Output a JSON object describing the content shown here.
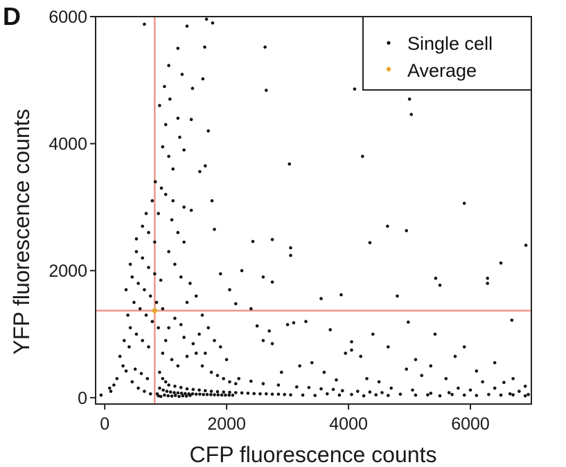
{
  "chart_data": {
    "type": "scatter",
    "panel_label": "D",
    "xlabel": "CFP fluorescence counts",
    "ylabel": "YFP fluorescence counts",
    "xlim": [
      -150,
      7000
    ],
    "ylim": [
      -100,
      6000
    ],
    "x_ticks": [
      0,
      2000,
      4000,
      6000
    ],
    "y_ticks": [
      0,
      2000,
      4000,
      6000
    ],
    "x_tick_labels": [
      "0",
      "2000",
      "4000",
      "6000"
    ],
    "y_tick_labels": [
      "0",
      "2000",
      "4000",
      "6000"
    ],
    "grid": false,
    "legend_position": "top-right",
    "reference_lines": {
      "vertical_x": 820,
      "horizontal_y": 1370,
      "color": "#f0958a"
    },
    "series": [
      {
        "name": "Single cell",
        "color": "#111111",
        "marker": "dot",
        "points": [
          [
            650,
            5880
          ],
          [
            1350,
            5850
          ],
          [
            1670,
            5960
          ],
          [
            1770,
            5900
          ],
          [
            1200,
            5500
          ],
          [
            1640,
            5520
          ],
          [
            2630,
            5520
          ],
          [
            1050,
            5230
          ],
          [
            1270,
            5090
          ],
          [
            980,
            4900
          ],
          [
            1440,
            4870
          ],
          [
            1610,
            5020
          ],
          [
            2650,
            4840
          ],
          [
            4100,
            4860
          ],
          [
            5000,
            4700
          ],
          [
            5030,
            4460
          ],
          [
            1070,
            4700
          ],
          [
            900,
            4600
          ],
          [
            1200,
            4400
          ],
          [
            1420,
            4380
          ],
          [
            1700,
            4200
          ],
          [
            1000,
            4300
          ],
          [
            1230,
            4100
          ],
          [
            950,
            3950
          ],
          [
            1300,
            3900
          ],
          [
            1050,
            3800
          ],
          [
            1120,
            3600
          ],
          [
            1650,
            3650
          ],
          [
            1560,
            3560
          ],
          [
            3030,
            3680
          ],
          [
            4230,
            3800
          ],
          [
            1000,
            3200
          ],
          [
            1120,
            3100
          ],
          [
            1300,
            3000
          ],
          [
            1420,
            2950
          ],
          [
            1760,
            3100
          ],
          [
            5900,
            3060
          ],
          [
            1800,
            2650
          ],
          [
            2430,
            2460
          ],
          [
            2750,
            2490
          ],
          [
            3050,
            2360
          ],
          [
            3050,
            2240
          ],
          [
            4350,
            2440
          ],
          [
            4640,
            2700
          ],
          [
            4950,
            2630
          ],
          [
            6500,
            2120
          ],
          [
            6910,
            2400
          ],
          [
            2250,
            2000
          ],
          [
            2600,
            1900
          ],
          [
            2750,
            1820
          ],
          [
            3550,
            1560
          ],
          [
            3880,
            1620
          ],
          [
            4800,
            1600
          ],
          [
            5430,
            1880
          ],
          [
            5500,
            1770
          ],
          [
            6280,
            1880
          ],
          [
            6280,
            1800
          ],
          [
            1900,
            1950
          ],
          [
            2050,
            1700
          ],
          [
            2150,
            1480
          ],
          [
            2400,
            1400
          ],
          [
            3300,
            1200
          ],
          [
            2500,
            1130
          ],
          [
            2700,
            1050
          ],
          [
            3000,
            1150
          ],
          [
            3100,
            1180
          ],
          [
            3700,
            1070
          ],
          [
            4050,
            880
          ],
          [
            4400,
            1000
          ],
          [
            4980,
            1190
          ],
          [
            5420,
            1000
          ],
          [
            6680,
            1220
          ],
          [
            2600,
            900
          ],
          [
            2750,
            850
          ],
          [
            3950,
            700
          ],
          [
            4050,
            750
          ],
          [
            4200,
            650
          ],
          [
            4650,
            800
          ],
          [
            5100,
            600
          ],
          [
            5350,
            500
          ],
          [
            5750,
            650
          ],
          [
            5900,
            800
          ],
          [
            6400,
            550
          ],
          [
            6700,
            300
          ],
          [
            6900,
            180
          ],
          [
            3200,
            500
          ],
          [
            3400,
            550
          ],
          [
            3600,
            400
          ],
          [
            2900,
            400
          ],
          [
            4950,
            450
          ],
          [
            6100,
            420
          ],
          [
            6550,
            240
          ],
          [
            5200,
            350
          ],
          [
            5600,
            300
          ],
          [
            6200,
            250
          ],
          [
            3800,
            280
          ],
          [
            4300,
            300
          ],
          [
            4500,
            250
          ],
          [
            4700,
            150
          ],
          [
            5050,
            120
          ],
          [
            5800,
            150
          ],
          [
            6000,
            120
          ],
          [
            6400,
            150
          ],
          [
            6800,
            100
          ],
          [
            2200,
            300
          ],
          [
            2400,
            260
          ],
          [
            2600,
            220
          ],
          [
            2850,
            200
          ],
          [
            3150,
            170
          ],
          [
            3350,
            160
          ],
          [
            3550,
            140
          ],
          [
            3750,
            130
          ],
          [
            3900,
            110
          ],
          [
            4150,
            100
          ],
          [
            4350,
            90
          ],
          [
            4550,
            80
          ],
          [
            5350,
            70
          ],
          [
            5650,
            80
          ],
          [
            6650,
            60
          ],
          [
            6950,
            50
          ],
          [
            300,
            500
          ],
          [
            200,
            300
          ],
          [
            400,
            800
          ],
          [
            150,
            200
          ],
          [
            100,
            100
          ],
          [
            -60,
            40
          ],
          [
            80,
            150
          ],
          [
            250,
            650
          ],
          [
            350,
            420
          ],
          [
            500,
            450
          ],
          [
            600,
            380
          ],
          [
            700,
            300
          ],
          [
            450,
            250
          ],
          [
            550,
            150
          ],
          [
            650,
            100
          ],
          [
            750,
            60
          ],
          [
            320,
            900
          ],
          [
            420,
            1100
          ],
          [
            520,
            1000
          ],
          [
            620,
            900
          ],
          [
            720,
            800
          ],
          [
            380,
            1300
          ],
          [
            480,
            1500
          ],
          [
            580,
            1400
          ],
          [
            680,
            1300
          ],
          [
            780,
            1200
          ],
          [
            880,
            1100
          ],
          [
            350,
            1700
          ],
          [
            450,
            1900
          ],
          [
            550,
            1800
          ],
          [
            650,
            1700
          ],
          [
            750,
            1600
          ],
          [
            850,
            1500
          ],
          [
            950,
            1400
          ],
          [
            420,
            2100
          ],
          [
            520,
            2300
          ],
          [
            620,
            2200
          ],
          [
            720,
            2050
          ],
          [
            820,
            1950
          ],
          [
            920,
            1850
          ],
          [
            520,
            2500
          ],
          [
            620,
            2700
          ],
          [
            720,
            2600
          ],
          [
            820,
            2450
          ],
          [
            680,
            2900
          ],
          [
            780,
            3100
          ],
          [
            880,
            2900
          ],
          [
            830,
            3400
          ],
          [
            930,
            3300
          ],
          [
            1100,
            2800
          ],
          [
            1200,
            2600
          ],
          [
            1300,
            2450
          ],
          [
            1050,
            2300
          ],
          [
            1150,
            2100
          ],
          [
            1250,
            1900
          ],
          [
            1400,
            1800
          ],
          [
            1500,
            1600
          ],
          [
            1350,
            1500
          ],
          [
            1600,
            1300
          ],
          [
            1700,
            1100
          ],
          [
            1550,
            1000
          ],
          [
            1800,
            900
          ],
          [
            1900,
            800
          ],
          [
            1650,
            700
          ],
          [
            2000,
            600
          ],
          [
            1350,
            650
          ],
          [
            1100,
            600
          ],
          [
            1200,
            500
          ],
          [
            950,
            700
          ],
          [
            1000,
            900
          ],
          [
            1050,
            1100
          ],
          [
            1150,
            1250
          ],
          [
            1250,
            1150
          ],
          [
            1300,
            950
          ],
          [
            1450,
            850
          ],
          [
            1500,
            700
          ],
          [
            1600,
            500
          ],
          [
            1750,
            400
          ],
          [
            1850,
            350
          ],
          [
            1950,
            300
          ],
          [
            2050,
            250
          ],
          [
            2150,
            220
          ],
          [
            900,
            400
          ],
          [
            950,
            300
          ],
          [
            1000,
            250
          ],
          [
            1050,
            200
          ],
          [
            1150,
            180
          ],
          [
            1250,
            160
          ],
          [
            1350,
            140
          ],
          [
            1450,
            130
          ],
          [
            1550,
            120
          ],
          [
            1650,
            110
          ],
          [
            1750,
            100
          ],
          [
            1850,
            95
          ],
          [
            1950,
            90
          ],
          [
            2050,
            85
          ],
          [
            2150,
            80
          ],
          [
            2250,
            75
          ],
          [
            2350,
            70
          ],
          [
            2450,
            65
          ],
          [
            2550,
            60
          ],
          [
            2650,
            60
          ],
          [
            2750,
            55
          ],
          [
            2850,
            55
          ],
          [
            2950,
            50
          ],
          [
            900,
            150
          ],
          [
            960,
            120
          ],
          [
            1020,
            100
          ],
          [
            1080,
            90
          ],
          [
            1140,
            80
          ],
          [
            1200,
            75
          ],
          [
            1260,
            70
          ],
          [
            1320,
            65
          ],
          [
            1380,
            60
          ],
          [
            1440,
            60
          ],
          [
            1500,
            55
          ],
          [
            1560,
            55
          ],
          [
            1620,
            50
          ],
          [
            1680,
            50
          ],
          [
            1740,
            48
          ],
          [
            1800,
            46
          ],
          [
            1860,
            44
          ],
          [
            1920,
            42
          ],
          [
            1980,
            40
          ],
          [
            2040,
            40
          ],
          [
            2100,
            38
          ],
          [
            860,
            60
          ],
          [
            880,
            30
          ],
          [
            920,
            20
          ],
          [
            980,
            40
          ],
          [
            1040,
            30
          ],
          [
            1100,
            25
          ],
          [
            1160,
            35
          ],
          [
            1220,
            20
          ],
          [
            1280,
            30
          ],
          [
            1340,
            25
          ],
          [
            1400,
            35
          ],
          [
            3050,
            45
          ],
          [
            3250,
            40
          ],
          [
            3450,
            35
          ],
          [
            3650,
            60
          ],
          [
            3850,
            40
          ],
          [
            4050,
            50
          ],
          [
            4250,
            30
          ],
          [
            4450,
            45
          ],
          [
            4650,
            35
          ],
          [
            4850,
            55
          ],
          [
            5100,
            40
          ],
          [
            5300,
            45
          ],
          [
            5500,
            30
          ],
          [
            5700,
            50
          ],
          [
            5900,
            40
          ],
          [
            6100,
            35
          ],
          [
            6300,
            50
          ],
          [
            6500,
            40
          ],
          [
            6700,
            45
          ],
          [
            6900,
            30
          ]
        ]
      },
      {
        "name": "Average",
        "color": "#e8a630",
        "marker": "diamond",
        "points": [
          [
            820,
            1370
          ]
        ]
      }
    ]
  }
}
